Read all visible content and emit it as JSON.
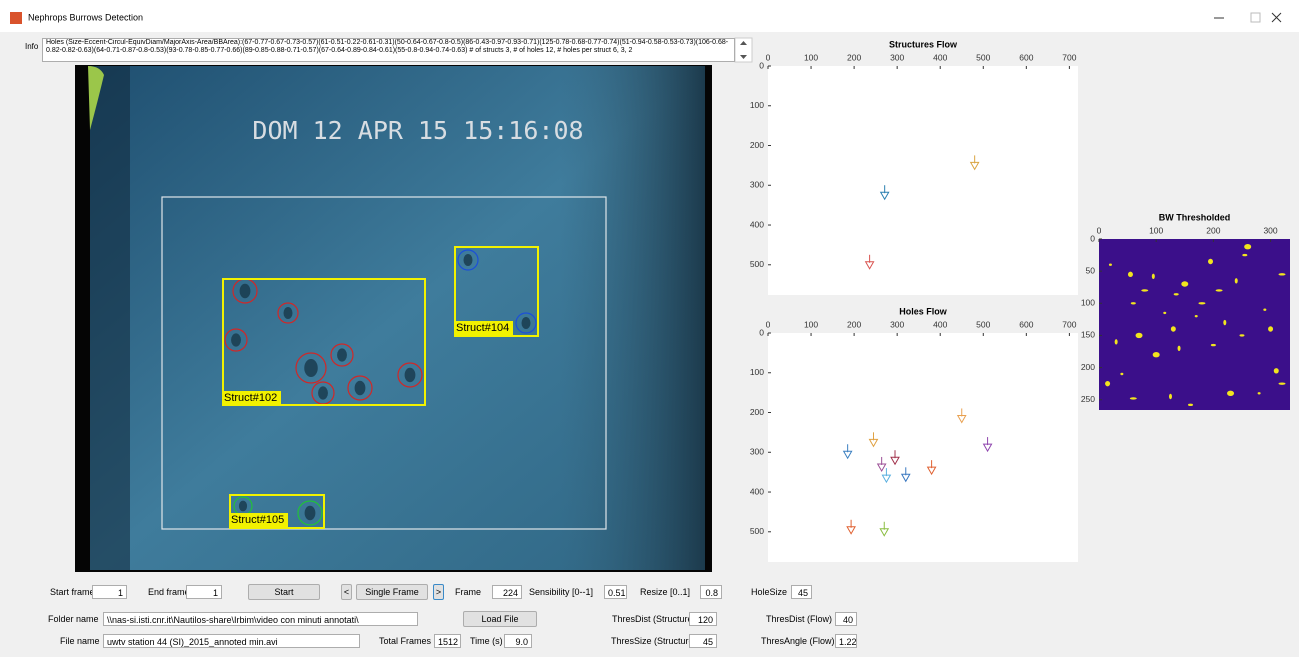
{
  "window": {
    "title": "Nephrops Burrows Detection"
  },
  "info": {
    "label": "Info",
    "text": "Holes (Size-Eccent-Circul-EquivDiam/MajorAxis-Area/BBArea):(67-0.77-0.67-0.73-0.57)(61-0.51-0.22-0.61-0.31)(50-0.64-0.67-0.8-0.5)(86-0.43-0.97-0.93-0.71)(125-0.78-0.68-0.77-0.74)(51-0.94-0.58-0.53-0.73)(106-0.68-0.82-0.82-0.63)(64-0.71-0.87-0.8-0.53)(93-0.78-0.85-0.77-0.66)(89-0.85-0.88-0.71-0.57)(67-0.64-0.89-0.84-0.61)(55-0.8-0.94-0.74-0.63) # of structs 3, # of holes 12, # holes per struct 6, 3, 2"
  },
  "video": {
    "timestamp": "DOM 12 APR 15 15:16:08",
    "structures": [
      "Struct#102",
      "Struct#104",
      "Struct#105"
    ]
  },
  "structures_flow": {
    "type": "scatter",
    "title": "Structures Flow",
    "xlim": [
      0,
      720
    ],
    "xticks": [
      0,
      100,
      200,
      300,
      400,
      500,
      600,
      700
    ],
    "ylim": [
      0,
      576
    ],
    "yticks": [
      0,
      100,
      200,
      300,
      400,
      500
    ],
    "x": [
      480,
      271,
      236
    ],
    "y": [
      255,
      330,
      505
    ],
    "colors": [
      "#d9a441",
      "#2a7fb0",
      "#d9534f"
    ]
  },
  "holes_flow": {
    "type": "scatter",
    "title": "Holes Flow",
    "xlim": [
      0,
      720
    ],
    "xticks": [
      0,
      100,
      200,
      300,
      400,
      500,
      600,
      700
    ],
    "ylim": [
      0,
      576
    ],
    "yticks": [
      0,
      100,
      200,
      300,
      400,
      500
    ],
    "x": [
      450,
      510,
      185,
      245,
      264,
      295,
      275,
      320,
      380,
      193,
      270
    ],
    "y": [
      220,
      292,
      310,
      280,
      342,
      325,
      370,
      368,
      350,
      500,
      505
    ],
    "colors": [
      "#e8a050",
      "#8e44ad",
      "#3a7fc0",
      "#e0a040",
      "#9b4f96",
      "#a0304a",
      "#5ab0e0",
      "#3a78c0",
      "#e06030",
      "#e06030",
      "#8abd40"
    ]
  },
  "bw_thresholded": {
    "type": "image",
    "title": "BW Thresholded",
    "xlim": [
      0,
      334
    ],
    "xticks": [
      0,
      100,
      200,
      300
    ],
    "ylim": [
      0,
      266
    ],
    "yticks": [
      0,
      50,
      100,
      150,
      200,
      250
    ]
  },
  "controls": {
    "start_frame": {
      "label": "Start frame",
      "value": "1"
    },
    "end_frame": {
      "label": "End frame",
      "value": "1"
    },
    "start_button": "Start",
    "prev_button": "<",
    "single_frame_button": "Single Frame",
    "next_button": ">",
    "frame": {
      "label": "Frame",
      "value": "224"
    },
    "sensibility": {
      "label": "Sensibility [0--1]",
      "value": "0.51"
    },
    "resize": {
      "label": "Resize [0..1]",
      "value": "0.8"
    },
    "hole_size": {
      "label": "HoleSize",
      "value": "45"
    },
    "folder_name": {
      "label": "Folder name",
      "value": "\\\\nas-si.isti.cnr.it\\Nautilos-share\\Irbim\\video con minuti annotati\\"
    },
    "load_file_button": "Load File",
    "thres_dist_structure": {
      "label": "ThresDist (Structure)",
      "value": "120"
    },
    "thres_dist_flow": {
      "label": "ThresDist (Flow)",
      "value": "40"
    },
    "file_name": {
      "label": "File name",
      "value": "uwtv station 44 (SI)_2015_annoted min.avi"
    },
    "total_frames": {
      "label": "Total Frames",
      "value": "1512"
    },
    "time": {
      "label": "Time (s)",
      "value": "9.0"
    },
    "thres_size_structure": {
      "label": "ThresSize (Structure)",
      "value": "45"
    },
    "thres_angle_flow": {
      "label": "ThresAngle (Flow)",
      "value": "1.22"
    }
  }
}
